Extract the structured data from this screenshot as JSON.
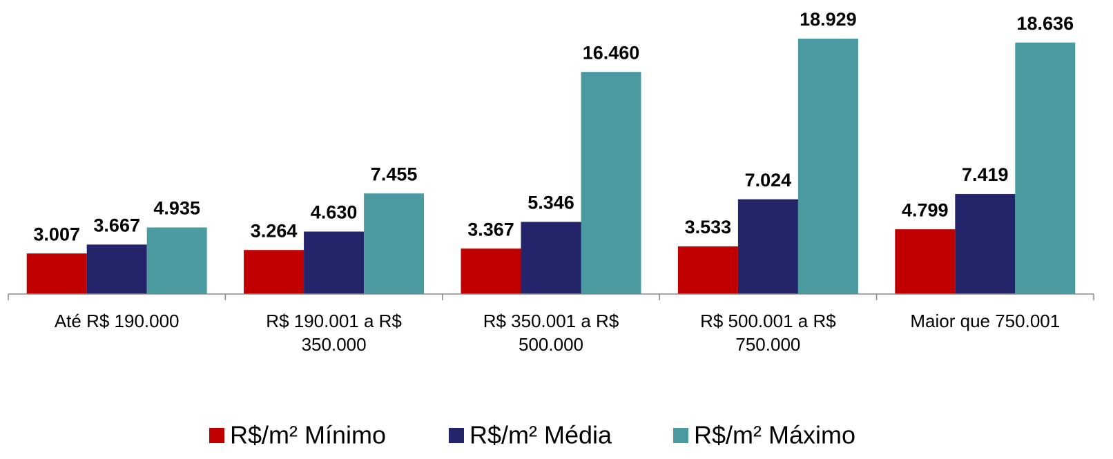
{
  "chart_data": {
    "type": "bar",
    "categories": [
      "Até R$ 190.000",
      "R$ 190.001 a R$ 350.000",
      "R$ 350.001 a R$ 500.000",
      "R$ 500.001 a R$ 750.000",
      "Maior que 750.001"
    ],
    "series": [
      {
        "name": "R$/m² Mínimo",
        "color": "#c00000",
        "values": [
          3007,
          3264,
          3367,
          3533,
          4799
        ],
        "value_labels": [
          "3.007",
          "3.264",
          "3.367",
          "3.533",
          "4.799"
        ]
      },
      {
        "name": "R$/m² Média",
        "color": "#24246b",
        "values": [
          3667,
          4630,
          5346,
          7024,
          7419
        ],
        "value_labels": [
          "3.667",
          "4.630",
          "5.346",
          "7.024",
          "7.419"
        ]
      },
      {
        "name": "R$/m² Máximo",
        "color": "#4a9aa0",
        "values": [
          4935,
          7455,
          16460,
          18929,
          18636
        ],
        "value_labels": [
          "4.935",
          "7.455",
          "16.460",
          "18.929",
          "18.636"
        ]
      }
    ],
    "ylim": [
      0,
      20000
    ],
    "legend": "bottom"
  }
}
